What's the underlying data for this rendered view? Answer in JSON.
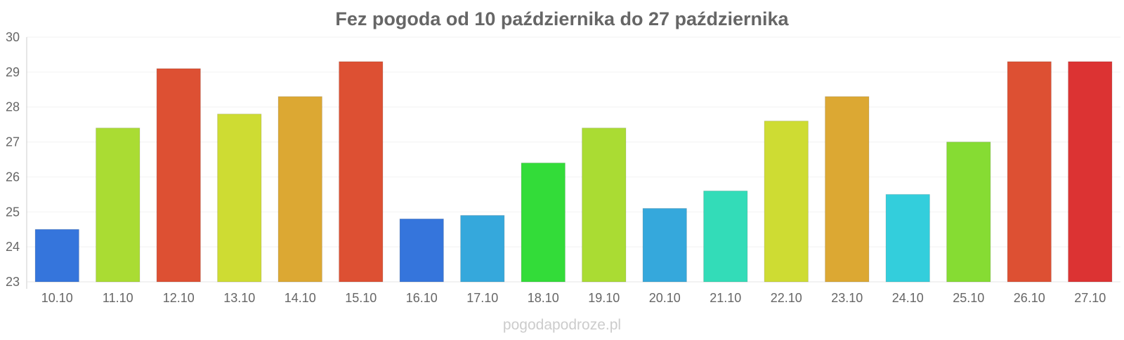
{
  "chart_data": {
    "type": "bar",
    "title": "Fez pogoda od 10 października do 27 października",
    "xlabel": "",
    "ylabel": "",
    "categories": [
      "10.10",
      "11.10",
      "12.10",
      "13.10",
      "14.10",
      "15.10",
      "16.10",
      "17.10",
      "18.10",
      "19.10",
      "20.10",
      "21.10",
      "22.10",
      "23.10",
      "24.10",
      "25.10",
      "26.10",
      "27.10"
    ],
    "values": [
      24.5,
      27.4,
      29.1,
      27.8,
      28.3,
      29.3,
      24.8,
      24.9,
      26.4,
      27.4,
      25.1,
      25.6,
      27.6,
      28.3,
      25.5,
      27.0,
      29.3,
      29.3
    ],
    "colors": [
      "#3575dc",
      "#aadc33",
      "#dd5033",
      "#cedc33",
      "#dca833",
      "#dd5033",
      "#3575dc",
      "#35a8dc",
      "#33dc39",
      "#aadc33",
      "#35a8dc",
      "#33dcb8",
      "#cedc33",
      "#dca833",
      "#33cedc",
      "#86dc33",
      "#dd5033",
      "#dc3333"
    ],
    "ylim": [
      23,
      30
    ],
    "yticks": [
      23,
      24,
      25,
      26,
      27,
      28,
      29,
      30
    ],
    "grid": true,
    "legend": "none"
  },
  "watermark": "pogodapodroze.pl"
}
